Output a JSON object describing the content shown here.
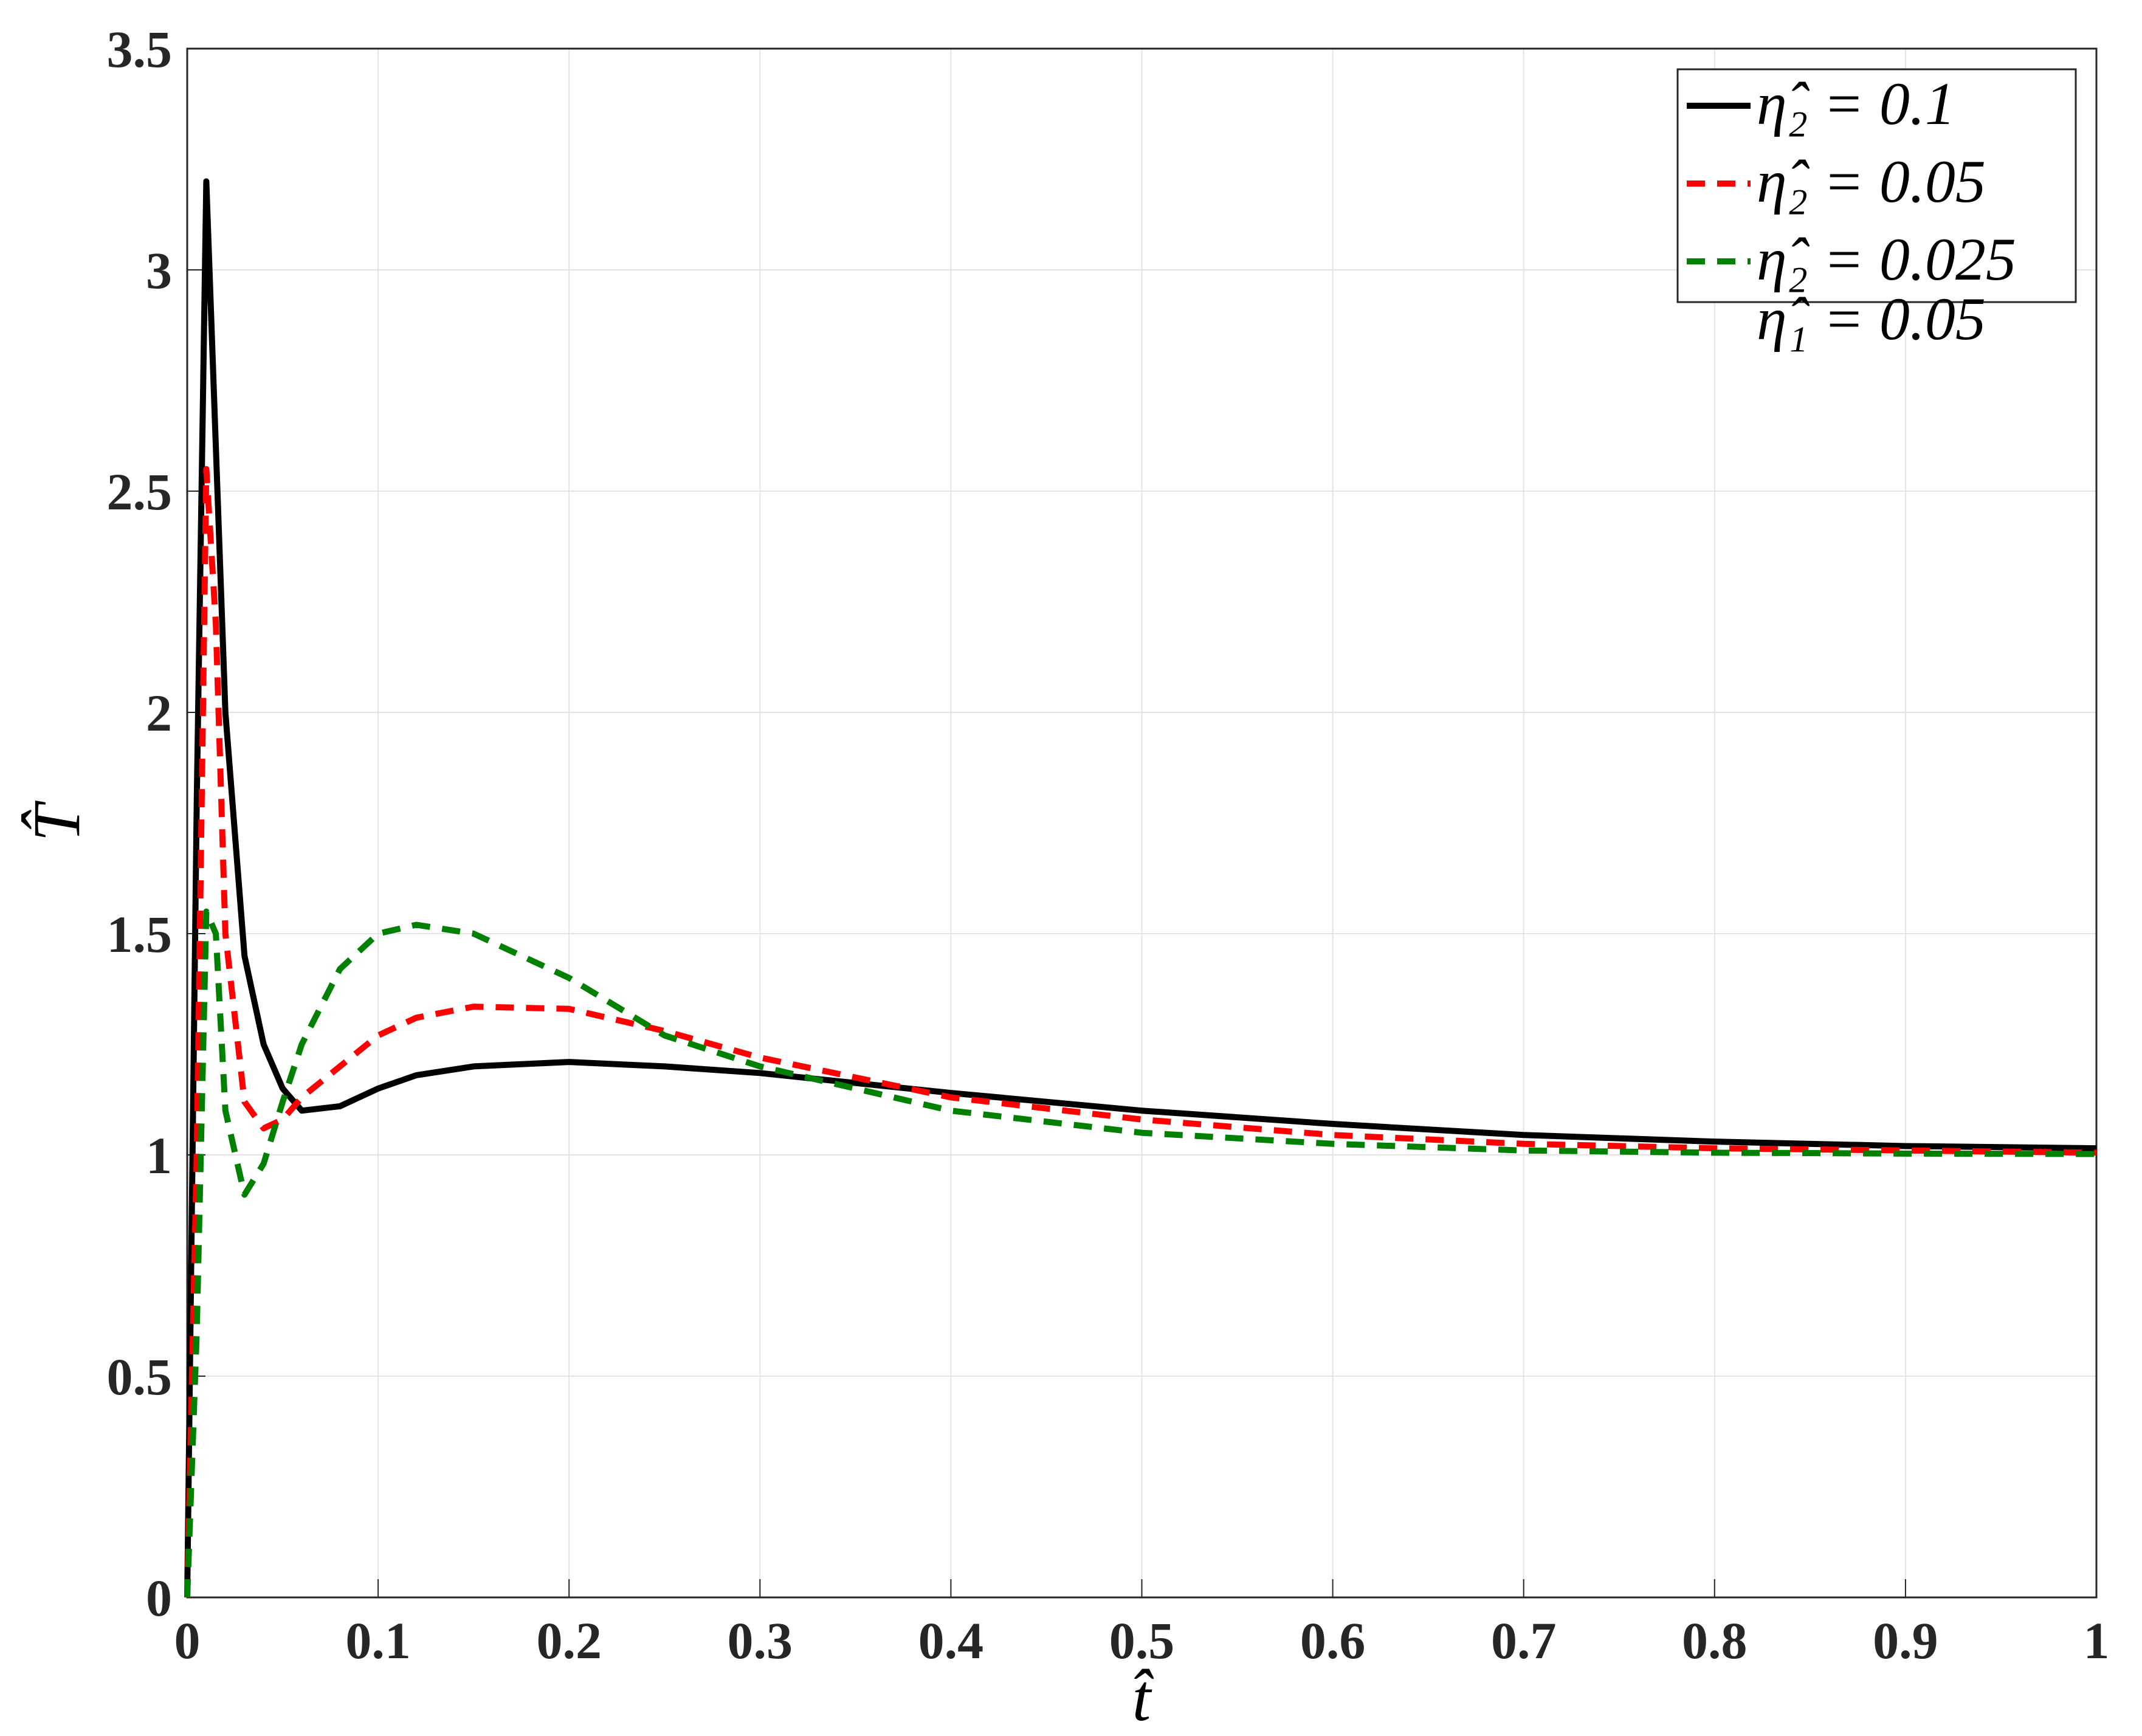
{
  "chart_data": {
    "type": "line",
    "x_label": "t̂",
    "y_label": "T̂",
    "annotation": "η̂₁ = 0.05",
    "x": [
      0,
      0.005,
      0.01,
      0.015,
      0.02,
      0.03,
      0.04,
      0.05,
      0.06,
      0.08,
      0.1,
      0.12,
      0.15,
      0.2,
      0.25,
      0.3,
      0.4,
      0.5,
      0.6,
      0.7,
      0.8,
      0.9,
      1.0
    ],
    "series": [
      {
        "name": "η̂₂ = 0.1",
        "color": "#000000",
        "dash": false,
        "values": [
          0,
          1.8,
          3.2,
          2.6,
          2.0,
          1.45,
          1.25,
          1.15,
          1.1,
          1.11,
          1.15,
          1.18,
          1.2,
          1.21,
          1.2,
          1.185,
          1.14,
          1.1,
          1.07,
          1.045,
          1.03,
          1.02,
          1.015
        ]
      },
      {
        "name": "η̂₂ = 0.05",
        "color": "#ff0000",
        "dash": true,
        "values": [
          0,
          1.0,
          2.55,
          2.2,
          1.5,
          1.12,
          1.06,
          1.08,
          1.13,
          1.2,
          1.27,
          1.31,
          1.335,
          1.33,
          1.28,
          1.22,
          1.13,
          1.08,
          1.045,
          1.025,
          1.015,
          1.01,
          1.005
        ]
      },
      {
        "name": "η̂₂ = 0.025",
        "color": "#008000",
        "dash": true,
        "values": [
          0,
          0.6,
          1.55,
          1.5,
          1.1,
          0.91,
          0.98,
          1.12,
          1.25,
          1.42,
          1.5,
          1.52,
          1.5,
          1.4,
          1.27,
          1.2,
          1.1,
          1.05,
          1.025,
          1.01,
          1.005,
          1.003,
          1.002
        ]
      }
    ],
    "xlim": [
      0,
      1
    ],
    "ylim": [
      0,
      3.5
    ],
    "xticks": [
      0,
      0.1,
      0.2,
      0.3,
      0.4,
      0.5,
      0.6,
      0.7,
      0.8,
      0.9,
      1
    ],
    "yticks": [
      0,
      0.5,
      1,
      1.5,
      2,
      2.5,
      3,
      3.5
    ],
    "grid": true,
    "legend": "upper right"
  }
}
